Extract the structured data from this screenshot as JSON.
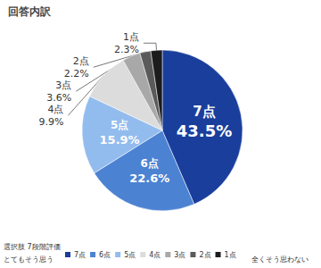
{
  "chart_data": {
    "type": "pie",
    "title": "回答内訳",
    "categories": [
      "7点",
      "6点",
      "5点",
      "4点",
      "3点",
      "2点",
      "1点"
    ],
    "values": [
      43.5,
      22.6,
      15.9,
      9.9,
      3.6,
      2.2,
      2.3
    ],
    "value_labels": [
      "43.5%",
      "22.6%",
      "15.9%",
      "9.9%",
      "3.6%",
      "2.2%",
      "2.3%"
    ],
    "colors": [
      "#1a3e9c",
      "#4c82d2",
      "#93bcee",
      "#dcdcdc",
      "#a8a8a8",
      "#5a5a5a",
      "#1c1c1c"
    ],
    "data_labels": true,
    "legend": "bottom",
    "annotations": [
      "選択肢 7段階評価",
      "とてもそう思う",
      "全くそう思わない"
    ]
  }
}
